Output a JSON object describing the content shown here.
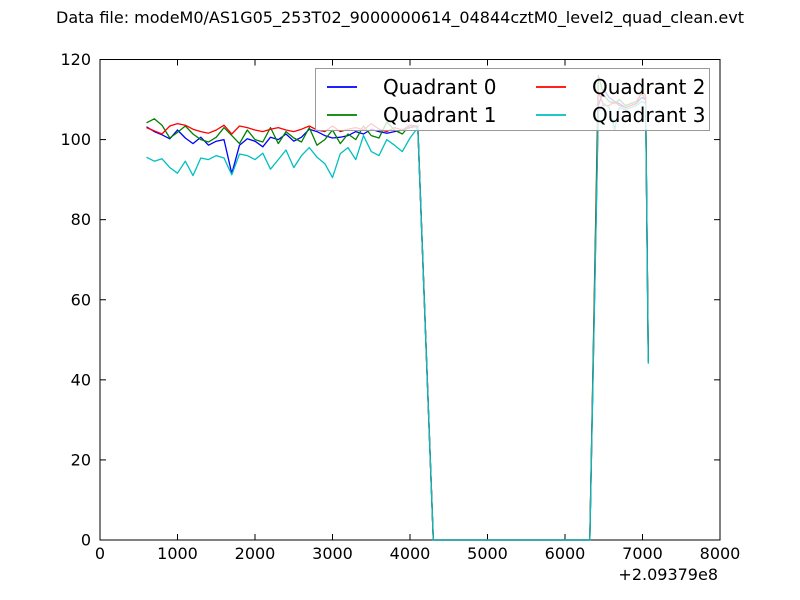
{
  "figure": {
    "background": "#ffffff"
  },
  "chart_data": {
    "type": "line",
    "title": "Data file: modeM0/AS1G05_253T02_9000000614_04844cztM0_level2_quad_clean.evt",
    "xlabel": "",
    "ylabel": "",
    "xlim": [
      0,
      8000
    ],
    "ylim": [
      0,
      120
    ],
    "x_ticks": [
      0,
      1000,
      2000,
      3000,
      4000,
      5000,
      6000,
      7000,
      8000
    ],
    "y_ticks": [
      0,
      20,
      40,
      60,
      80,
      100,
      120
    ],
    "x_offset_label": "+2.09379e8",
    "grid": false,
    "axes_color": "#000000",
    "legend": {
      "location": "upper right",
      "columns": 2,
      "border_color": "#999999",
      "background_opacity": 0.8,
      "entries": [
        {
          "label": "Quadrant 0",
          "color": "#0000ff"
        },
        {
          "label": "Quadrant 1",
          "color": "#008000"
        },
        {
          "label": "Quadrant 2",
          "color": "#ff0000"
        },
        {
          "label": "Quadrant 3",
          "color": "#00bfbf"
        }
      ]
    },
    "x": [
      600,
      700,
      800,
      900,
      1000,
      1100,
      1200,
      1300,
      1400,
      1500,
      1600,
      1700,
      1800,
      1900,
      2000,
      2100,
      2200,
      2300,
      2400,
      2500,
      2600,
      2700,
      2800,
      2900,
      3000,
      3100,
      3200,
      3300,
      3400,
      3500,
      3600,
      3700,
      3800,
      3900,
      4000,
      4100,
      4300,
      6320,
      6430,
      6500,
      6570,
      6640,
      6700,
      6780,
      6850,
      6920,
      6990,
      7040,
      7075
    ],
    "series": [
      {
        "name": "Quadrant 0",
        "color": "#0000ff",
        "values": [
          103.2,
          102.0,
          101.2,
          100.2,
          102.4,
          100.4,
          99.0,
          100.6,
          98.6,
          99.6,
          100.0,
          91.5,
          98.6,
          100.2,
          99.6,
          98.2,
          100.6,
          100.0,
          101.4,
          99.6,
          100.6,
          102.6,
          102.0,
          101.0,
          100.4,
          100.6,
          101.0,
          102.0,
          101.4,
          102.6,
          102.0,
          101.6,
          102.0,
          102.4,
          103.0,
          103.4,
          0,
          0,
          108.5,
          112.5,
          110.5,
          109.5,
          109.0,
          108.0,
          108.5,
          109.0,
          110.5,
          110.0,
          44.5
        ]
      },
      {
        "name": "Quadrant 1",
        "color": "#008000",
        "values": [
          104.2,
          105.2,
          103.6,
          100.4,
          101.8,
          103.4,
          101.4,
          100.0,
          99.4,
          100.6,
          103.0,
          101.0,
          99.0,
          102.4,
          100.0,
          99.4,
          103.0,
          99.0,
          102.0,
          100.4,
          99.4,
          103.0,
          98.6,
          100.0,
          102.4,
          99.0,
          101.4,
          100.0,
          103.4,
          101.0,
          100.4,
          104.4,
          102.4,
          101.4,
          103.6,
          103.0,
          0,
          0,
          116.0,
          111.0,
          109.5,
          109.0,
          110.0,
          108.5,
          109.0,
          109.5,
          111.5,
          110.0,
          45.0
        ]
      },
      {
        "name": "Quadrant 2",
        "color": "#ff0000",
        "values": [
          103.0,
          102.2,
          101.4,
          103.4,
          104.0,
          103.6,
          102.6,
          102.0,
          101.6,
          102.4,
          103.6,
          101.4,
          103.4,
          103.0,
          102.4,
          102.0,
          102.6,
          103.0,
          102.4,
          102.0,
          102.6,
          103.4,
          102.4,
          102.0,
          103.4,
          102.0,
          102.6,
          103.0,
          102.4,
          104.0,
          102.6,
          102.0,
          103.0,
          102.4,
          103.6,
          103.4,
          0,
          0,
          112.0,
          108.5,
          108.5,
          109.5,
          108.5,
          108.0,
          108.5,
          109.0,
          112.0,
          111.0,
          44.5
        ]
      },
      {
        "name": "Quadrant 3",
        "color": "#00bfbf",
        "values": [
          95.6,
          94.6,
          95.2,
          93.0,
          91.6,
          94.6,
          91.0,
          95.4,
          95.0,
          96.0,
          95.4,
          91.2,
          96.4,
          96.0,
          95.0,
          96.6,
          92.6,
          95.0,
          97.4,
          93.0,
          96.0,
          98.0,
          95.6,
          94.0,
          90.5,
          96.5,
          98.0,
          95.0,
          101.0,
          97.0,
          96.0,
          100.0,
          98.6,
          97.0,
          100.4,
          103.0,
          0,
          0,
          107.0,
          109.0,
          108.0,
          102.5,
          108.0,
          107.5,
          108.0,
          108.5,
          109.5,
          109.0,
          44.0
        ]
      }
    ]
  }
}
